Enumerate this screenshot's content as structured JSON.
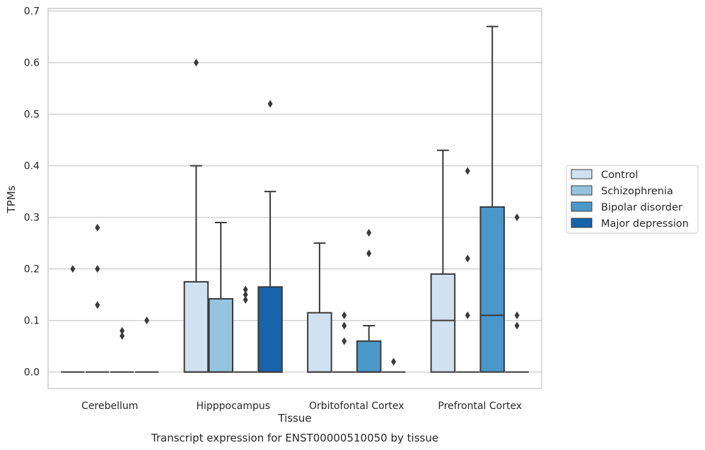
{
  "chart_data": {
    "type": "boxplot",
    "title": "Transcript expression for ENST00000510050 by tissue",
    "xlabel": "Tissue",
    "ylabel": "TPMs",
    "ylim": [
      -0.032,
      0.705
    ],
    "yticks": [
      0.0,
      0.1,
      0.2,
      0.3,
      0.4,
      0.5,
      0.6,
      0.7
    ],
    "ytick_labels": [
      "0.0",
      "0.1",
      "0.2",
      "0.3",
      "0.4",
      "0.5",
      "0.6",
      "0.7"
    ],
    "grid": "horizontal",
    "legend_position": "right",
    "categories": [
      "Cerebellum",
      "Hipppocampus",
      "Orbitofontal Cortex",
      "Prefrontal Cortex"
    ],
    "series": [
      {
        "name": "Control",
        "color": "#d0e1f2",
        "boxes": [
          {
            "q1": 0,
            "median": 0,
            "q3": 0,
            "whislo": 0,
            "whishi": 0,
            "fliers": [
              0.2
            ]
          },
          {
            "q1": 0,
            "median": 0,
            "q3": 0.175,
            "whislo": 0,
            "whishi": 0.4,
            "fliers": [
              0.6
            ]
          },
          {
            "q1": 0,
            "median": 0,
            "q3": 0.115,
            "whislo": 0,
            "whishi": 0.25,
            "fliers": []
          },
          {
            "q1": 0,
            "median": 0.1,
            "q3": 0.19,
            "whislo": 0,
            "whishi": 0.43,
            "fliers": []
          }
        ]
      },
      {
        "name": "Schizophrenia",
        "color": "#94c4df",
        "boxes": [
          {
            "q1": 0,
            "median": 0,
            "q3": 0,
            "whislo": 0,
            "whishi": 0,
            "fliers": [
              0.28,
              0.2,
              0.13
            ]
          },
          {
            "q1": 0,
            "median": 0,
            "q3": 0.142,
            "whislo": 0,
            "whishi": 0.29,
            "fliers": []
          },
          {
            "q1": 0,
            "median": 0,
            "q3": 0,
            "whislo": 0,
            "whishi": 0,
            "fliers": [
              0.11,
              0.09,
              0.06
            ]
          },
          {
            "q1": 0,
            "median": 0,
            "q3": 0,
            "whislo": 0,
            "whishi": 0,
            "fliers": [
              0.39,
              0.22,
              0.11
            ]
          }
        ]
      },
      {
        "name": "Bipolar disorder",
        "color": "#4a98c9",
        "boxes": [
          {
            "q1": 0,
            "median": 0,
            "q3": 0,
            "whislo": 0,
            "whishi": 0,
            "fliers": [
              0.08,
              0.07
            ]
          },
          {
            "q1": 0,
            "median": 0,
            "q3": 0,
            "whislo": 0,
            "whishi": 0,
            "fliers": [
              0.16,
              0.15,
              0.14
            ]
          },
          {
            "q1": 0,
            "median": 0,
            "q3": 0.06,
            "whislo": 0,
            "whishi": 0.09,
            "fliers": [
              0.27,
              0.23
            ]
          },
          {
            "q1": 0,
            "median": 0.11,
            "q3": 0.32,
            "whislo": 0,
            "whishi": 0.67,
            "fliers": []
          }
        ]
      },
      {
        "name": "Major depression",
        "color": "#1764ab",
        "boxes": [
          {
            "q1": 0,
            "median": 0,
            "q3": 0,
            "whislo": 0,
            "whishi": 0,
            "fliers": [
              0.1
            ]
          },
          {
            "q1": 0,
            "median": 0,
            "q3": 0.165,
            "whislo": 0,
            "whishi": 0.35,
            "fliers": [
              0.52
            ]
          },
          {
            "q1": 0,
            "median": 0,
            "q3": 0,
            "whislo": 0,
            "whishi": 0,
            "fliers": [
              0.02
            ]
          },
          {
            "q1": 0,
            "median": 0,
            "q3": 0,
            "whislo": 0,
            "whishi": 0,
            "fliers": [
              0.3,
              0.11,
              0.09
            ]
          }
        ]
      }
    ]
  }
}
